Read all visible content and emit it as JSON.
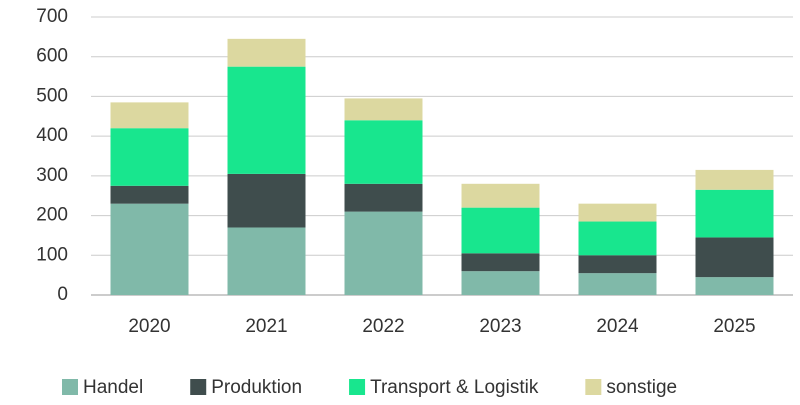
{
  "chart_data": {
    "type": "stacked_bar",
    "categories": [
      "2020",
      "2021",
      "2022",
      "2023",
      "2024",
      "2025"
    ],
    "series": [
      {
        "name": "Handel",
        "color": "#80b9a9",
        "values": [
          230,
          170,
          210,
          60,
          55,
          45
        ]
      },
      {
        "name": "Produktion",
        "color": "#3f4d4d",
        "values": [
          45,
          135,
          70,
          45,
          45,
          100
        ]
      },
      {
        "name": "Transport & Logistik",
        "color": "#18e68e",
        "values": [
          145,
          270,
          160,
          115,
          85,
          120
        ]
      },
      {
        "name": "sonstige",
        "color": "#dcd8a0",
        "values": [
          65,
          70,
          55,
          60,
          45,
          50
        ]
      }
    ],
    "ylim": [
      0,
      700
    ],
    "yticks": [
      0,
      100,
      200,
      300,
      400,
      500,
      600,
      700
    ],
    "grid": true,
    "legend": "bottom"
  }
}
